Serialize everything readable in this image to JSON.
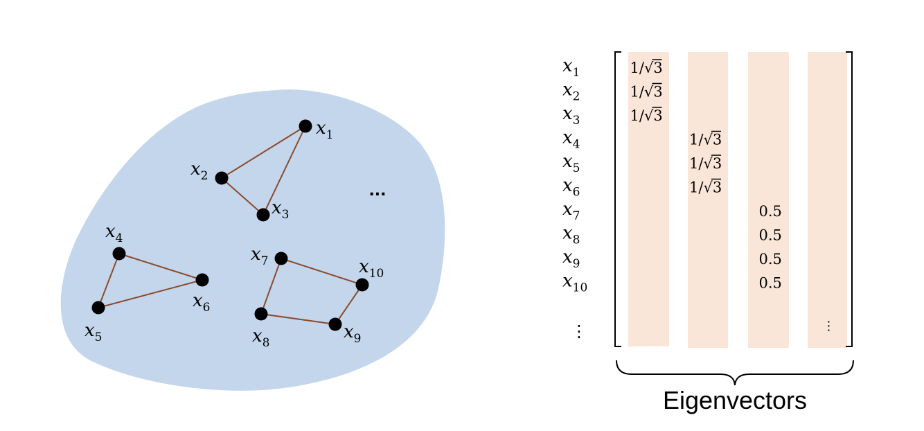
{
  "graph": {
    "node_symbol": "x",
    "nodes": [
      {
        "id": 1,
        "sub": "1"
      },
      {
        "id": 2,
        "sub": "2"
      },
      {
        "id": 3,
        "sub": "3"
      },
      {
        "id": 4,
        "sub": "4"
      },
      {
        "id": 5,
        "sub": "5"
      },
      {
        "id": 6,
        "sub": "6"
      },
      {
        "id": 7,
        "sub": "7"
      },
      {
        "id": 8,
        "sub": "8"
      },
      {
        "id": 9,
        "sub": "9"
      },
      {
        "id": 10,
        "sub": "10"
      }
    ],
    "edges": [
      [
        1,
        2
      ],
      [
        1,
        3
      ],
      [
        2,
        3
      ],
      [
        4,
        5
      ],
      [
        4,
        6
      ],
      [
        5,
        6
      ],
      [
        7,
        8
      ],
      [
        7,
        10
      ],
      [
        8,
        9
      ],
      [
        9,
        10
      ]
    ],
    "ellipsis": "...",
    "colors": {
      "blob": "#c3d6ec",
      "edge": "#8b4a2b",
      "node": "#000000"
    }
  },
  "matrix": {
    "row_labels": [
      {
        "symbol": "x",
        "sub": "1"
      },
      {
        "symbol": "x",
        "sub": "2"
      },
      {
        "symbol": "x",
        "sub": "3"
      },
      {
        "symbol": "x",
        "sub": "4"
      },
      {
        "symbol": "x",
        "sub": "5"
      },
      {
        "symbol": "x",
        "sub": "6"
      },
      {
        "symbol": "x",
        "sub": "7"
      },
      {
        "symbol": "x",
        "sub": "8"
      },
      {
        "symbol": "x",
        "sub": "9"
      },
      {
        "symbol": "x",
        "sub": "10"
      }
    ],
    "row_ellipsis": "⋮",
    "columns": [
      {
        "entries": [
          {
            "row": 1,
            "num": "1/",
            "den": "3"
          },
          {
            "row": 2,
            "num": "1/",
            "den": "3"
          },
          {
            "row": 3,
            "num": "1/",
            "den": "3"
          }
        ]
      },
      {
        "entries": [
          {
            "row": 4,
            "num": "1/",
            "den": "3"
          },
          {
            "row": 5,
            "num": "1/",
            "den": "3"
          },
          {
            "row": 6,
            "num": "1/",
            "den": "3"
          }
        ]
      },
      {
        "entries": [
          {
            "row": 7,
            "num": "0.5",
            "den": ""
          },
          {
            "row": 8,
            "num": "0.5",
            "den": ""
          },
          {
            "row": 9,
            "num": "0.5",
            "den": ""
          },
          {
            "row": 10,
            "num": "0.5",
            "den": ""
          }
        ]
      },
      {
        "entries": [],
        "ellipsis": "⋮"
      }
    ],
    "caption": "Eigenvectors",
    "colors": {
      "column": "#fae5d9"
    }
  }
}
